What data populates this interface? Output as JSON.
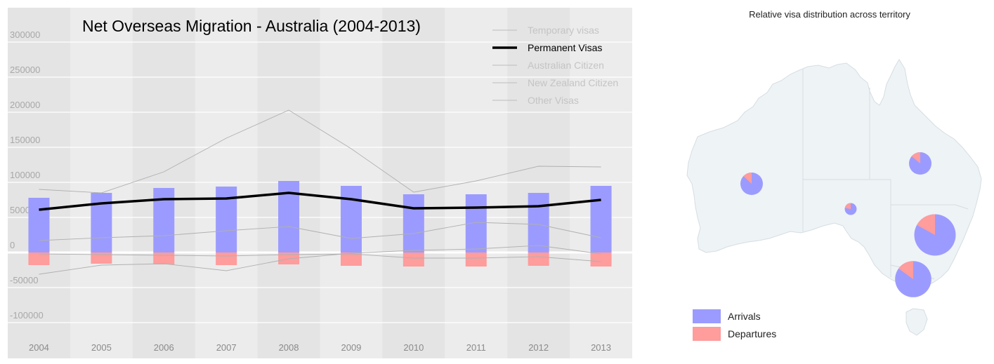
{
  "chart_data": [
    {
      "type": "bar+line",
      "title": "Net Overseas Migration - Australia (2004-2013)",
      "categories": [
        "2004",
        "2005",
        "2006",
        "2007",
        "2008",
        "2009",
        "2010",
        "2011",
        "2012",
        "2013"
      ],
      "ylim": [
        -100000,
        300000
      ],
      "yticks": [
        300000,
        250000,
        200000,
        150000,
        100000,
        50000,
        0,
        -50000,
        -100000
      ],
      "ytick_labels": [
        "300000",
        "250000",
        "200000",
        "150000",
        "100000",
        "50000",
        "0",
        "-50000",
        "-100000"
      ],
      "grid": true,
      "bars": [
        {
          "name": "Arrivals",
          "color": "#9b9bff",
          "values": [
            78000,
            85000,
            92000,
            94000,
            102000,
            95000,
            83000,
            83000,
            85000,
            95000
          ]
        },
        {
          "name": "Departures",
          "color": "#ff9c9c",
          "values": [
            -18000,
            -16000,
            -17000,
            -18000,
            -17000,
            -19000,
            -20000,
            -20000,
            -19000,
            -20000
          ]
        }
      ],
      "series": [
        {
          "name": "Temporary visas",
          "color": "#b0b0b0",
          "highlighted": false,
          "values": [
            90000,
            85000,
            115000,
            163000,
            203000,
            148000,
            86000,
            102000,
            123000,
            122000
          ]
        },
        {
          "name": "Permanent Visas",
          "color": "#000000",
          "highlighted": true,
          "values": [
            61000,
            70000,
            76000,
            77000,
            85000,
            76000,
            63000,
            64000,
            66000,
            75000
          ]
        },
        {
          "name": "Australian Citizen",
          "color": "#b0b0b0",
          "highlighted": false,
          "values": [
            17000,
            21000,
            24000,
            31000,
            37000,
            20000,
            27000,
            43000,
            40000,
            21000
          ]
        },
        {
          "name": "New Zealand Citizen",
          "color": "#b0b0b0",
          "highlighted": false,
          "values": [
            -31000,
            -18000,
            -16000,
            -26000,
            -9000,
            -1000,
            3000,
            5000,
            10000,
            -2000
          ]
        },
        {
          "name": "Other Visas",
          "color": "#b0b0b0",
          "highlighted": false,
          "values": [
            -2000,
            -3000,
            -4000,
            -5000,
            -3000,
            -2000,
            -8000,
            -8000,
            -6000,
            -13000
          ]
        }
      ],
      "legend_placement": "top-right"
    },
    {
      "type": "map-pies",
      "title": "Relative visa distribution across territory",
      "legend": [
        {
          "label": "Arrivals",
          "color": "#9b9bff"
        },
        {
          "label": "Departures",
          "color": "#ff9c9c"
        }
      ],
      "pies": [
        {
          "region": "Western Australia",
          "total": 1.0,
          "departure_fraction": 0.13
        },
        {
          "region": "South Australia",
          "total": 0.28,
          "departure_fraction": 0.22
        },
        {
          "region": "Queensland",
          "total": 1.0,
          "departure_fraction": 0.14
        },
        {
          "region": "New South Wales",
          "total": 3.4,
          "departure_fraction": 0.17
        },
        {
          "region": "Victoria",
          "total": 2.6,
          "departure_fraction": 0.15
        }
      ]
    }
  ]
}
